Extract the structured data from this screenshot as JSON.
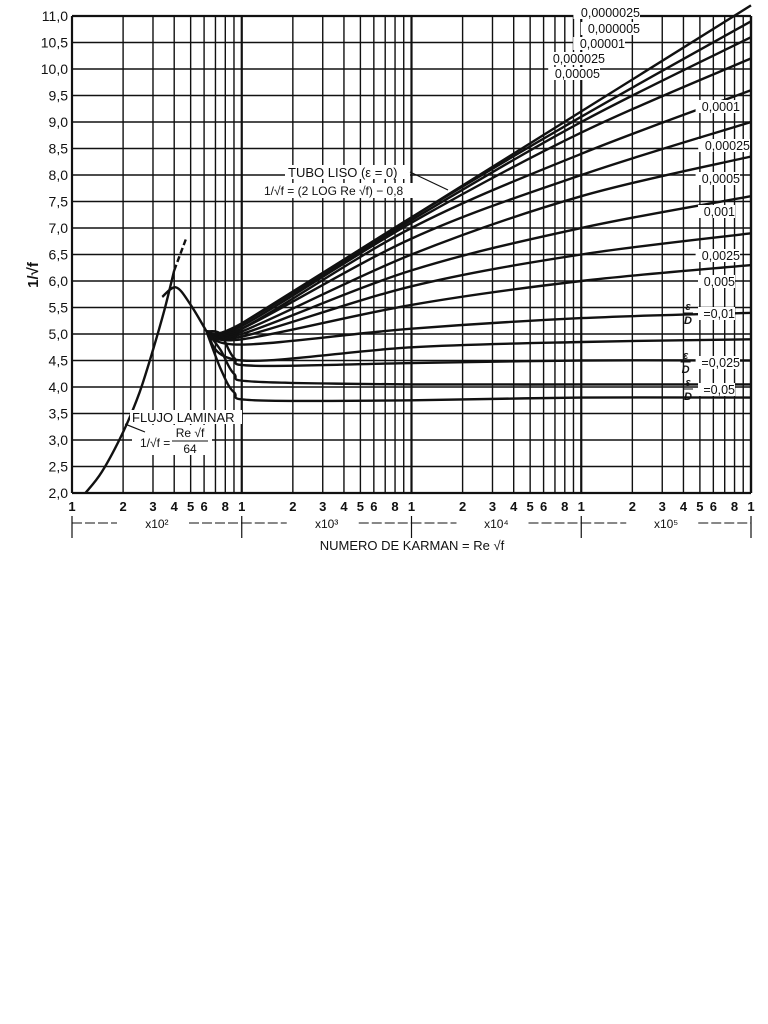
{
  "chart_data": {
    "type": "line",
    "title": "",
    "xlabel": "NUMERO DE KARMAN = Re √f",
    "ylabel": "1/√f",
    "xscale": "log",
    "xlim": [
      100,
      1000000
    ],
    "ylim": [
      2.0,
      11.0
    ],
    "grid": true,
    "y_ticks": [
      "2,0",
      "2,5",
      "3,0",
      "3,5",
      "4,0",
      "4,5",
      "5,0",
      "5,5",
      "6,0",
      "6,5",
      "7,0",
      "7,5",
      "8,0",
      "8,5",
      "9,0",
      "9,5",
      "10,0",
      "10,5",
      "11,0"
    ],
    "x_tick_labels": [
      "1",
      "2",
      "3",
      "4",
      "5",
      "6",
      "8",
      "1",
      "2",
      "3",
      "4",
      "5",
      "6",
      "8",
      "1",
      "2",
      "3",
      "4",
      "5",
      "6",
      "8",
      "1",
      "2",
      "3",
      "4",
      "5",
      "6",
      "8",
      "1"
    ],
    "decade_labels": [
      "x10²",
      "x10³",
      "x10⁴",
      "x10⁵"
    ],
    "annotations": {
      "laminar_title": "FLUJO LAMINAR",
      "laminar_eq_lhs": "1/√f",
      "laminar_eq_num": "Re √f",
      "laminar_eq_den": "64",
      "smooth_title": "TUBO LISO (ε = 0)",
      "smooth_eq": "1/√f = (2 LOG Re √f) − 0,8"
    },
    "series": [
      {
        "name": "Flujo laminar",
        "x": [
          120,
          150,
          200,
          250,
          300,
          350,
          400
        ],
        "values": [
          2.0,
          2.4,
          3.15,
          3.9,
          4.7,
          5.45,
          6.2
        ]
      },
      {
        "name": "Tubo liso (ε=0)",
        "x": [
          700,
          1000,
          10000,
          100000,
          1000000
        ],
        "values": [
          4.9,
          5.2,
          7.2,
          9.2,
          11.2
        ]
      },
      {
        "name": "0,0000025",
        "x": [
          1000,
          10000,
          100000,
          1000000
        ],
        "values": [
          5.2,
          7.2,
          9.1,
          10.9
        ]
      },
      {
        "name": "0,000005",
        "x": [
          1000,
          10000,
          100000,
          1000000
        ],
        "values": [
          5.2,
          7.15,
          9.0,
          10.6
        ]
      },
      {
        "name": "0,00001",
        "x": [
          1000,
          10000,
          100000,
          1000000
        ],
        "values": [
          5.15,
          7.1,
          8.8,
          10.2
        ]
      },
      {
        "name": "0,000025",
        "x": [
          1000,
          10000,
          100000,
          1000000
        ],
        "values": [
          5.1,
          7.0,
          8.4,
          9.6
        ]
      },
      {
        "name": "0,00005",
        "x": [
          1000,
          10000,
          100000,
          1000000
        ],
        "values": [
          5.1,
          6.8,
          8.0,
          9.0
        ]
      },
      {
        "name": "0,0001",
        "x": [
          1000,
          10000,
          100000,
          1000000
        ],
        "values": [
          5.05,
          6.5,
          7.6,
          8.35
        ]
      },
      {
        "name": "0,00025",
        "x": [
          1000,
          10000,
          100000,
          1000000
        ],
        "values": [
          5.0,
          6.2,
          7.0,
          7.6
        ]
      },
      {
        "name": "0,0005",
        "x": [
          1000,
          10000,
          100000,
          1000000
        ],
        "values": [
          4.95,
          5.9,
          6.5,
          6.9
        ]
      },
      {
        "name": "0,001",
        "x": [
          1000,
          10000,
          100000,
          1000000
        ],
        "values": [
          4.9,
          5.55,
          6.0,
          6.3
        ]
      },
      {
        "name": "0,0025",
        "x": [
          1000,
          10000,
          100000,
          1000000
        ],
        "values": [
          4.8,
          5.1,
          5.3,
          5.4
        ]
      },
      {
        "name": "0,005",
        "x": [
          1000,
          10000,
          100000,
          1000000
        ],
        "values": [
          4.5,
          4.75,
          4.85,
          4.9
        ]
      },
      {
        "name": "ε/D = 0,01",
        "x": [
          1000,
          10000,
          100000,
          1000000
        ],
        "values": [
          4.4,
          4.45,
          4.5,
          4.5
        ]
      },
      {
        "name": "ε/D = 0,025",
        "x": [
          1000,
          10000,
          100000,
          1000000
        ],
        "values": [
          4.1,
          4.05,
          4.05,
          4.05
        ]
      },
      {
        "name": "ε/D = 0,05",
        "x": [
          1000,
          10000,
          100000,
          1000000
        ],
        "values": [
          3.75,
          3.75,
          3.8,
          3.8
        ]
      }
    ],
    "legend_position": "inline-right"
  },
  "axis": {
    "ylabel": "1/√f",
    "xlabel": "NUMERO DE KARMAN = Re √f"
  },
  "labels_right": [
    "0,0000025",
    "0,000005",
    "0,00001",
    "0,000025",
    "0,00005",
    "0,0001",
    "0,00025",
    "0,0005",
    "0,001",
    "0,0025",
    "0,005",
    "=0,01",
    "=0,025",
    "=0,05"
  ]
}
